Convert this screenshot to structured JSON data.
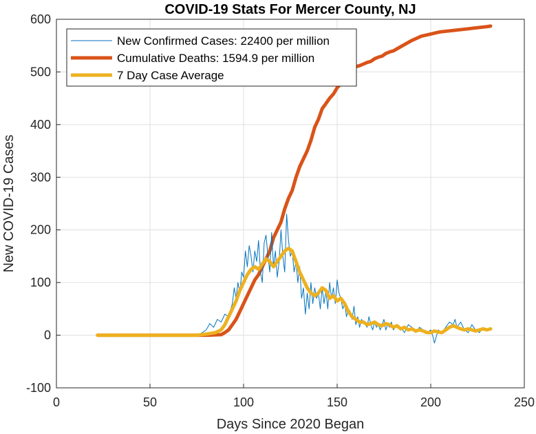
{
  "chart_data": {
    "type": "line",
    "title": "COVID-19 Stats For Mercer County, NJ",
    "xlabel": "Days Since 2020 Began",
    "ylabel": "New COVID-19 Cases",
    "xlim": [
      0,
      250
    ],
    "ylim": [
      -100,
      600
    ],
    "xticks": [
      "0",
      "50",
      "100",
      "150",
      "200",
      "250"
    ],
    "yticks": [
      "-100",
      "0",
      "100",
      "200",
      "300",
      "400",
      "500",
      "600"
    ],
    "grid": true,
    "legend_position": "top-left",
    "series": [
      {
        "name": "New Confirmed Cases: 22400 per million",
        "color": "#0072BD",
        "style": "thin",
        "x": [
          22,
          30,
          40,
          50,
          60,
          70,
          75,
          78,
          80,
          82,
          84,
          86,
          88,
          90,
          92,
          94,
          95,
          96,
          97,
          98,
          99,
          100,
          101,
          102,
          103,
          104,
          105,
          106,
          107,
          108,
          109,
          110,
          111,
          112,
          113,
          114,
          115,
          116,
          117,
          118,
          119,
          120,
          121,
          122,
          123,
          124,
          125,
          126,
          127,
          128,
          129,
          130,
          131,
          132,
          133,
          134,
          135,
          136,
          137,
          138,
          139,
          140,
          141,
          142,
          143,
          144,
          145,
          146,
          147,
          148,
          149,
          150,
          151,
          152,
          153,
          154,
          155,
          156,
          157,
          158,
          159,
          160,
          161,
          162,
          163,
          164,
          165,
          166,
          167,
          168,
          169,
          170,
          171,
          172,
          173,
          174,
          175,
          176,
          177,
          178,
          179,
          180,
          182,
          184,
          186,
          188,
          190,
          192,
          194,
          196,
          198,
          200,
          201,
          202,
          204,
          206,
          208,
          210,
          212,
          213,
          214,
          216,
          218,
          220,
          222,
          224,
          226,
          228,
          230,
          232
        ],
        "y": [
          0,
          0,
          0,
          0,
          0,
          0,
          0,
          5,
          10,
          22,
          15,
          30,
          25,
          40,
          35,
          60,
          90,
          70,
          100,
          80,
          120,
          110,
          160,
          130,
          170,
          150,
          120,
          160,
          140,
          180,
          120,
          100,
          175,
          190,
          150,
          120,
          195,
          130,
          160,
          110,
          140,
          200,
          150,
          120,
          230,
          180,
          150,
          160,
          120,
          140,
          100,
          130,
          70,
          90,
          40,
          80,
          50,
          100,
          60,
          90,
          70,
          80,
          50,
          90,
          60,
          85,
          50,
          100,
          70,
          90,
          60,
          105,
          80,
          70,
          50,
          60,
          35,
          50,
          45,
          30,
          55,
          20,
          35,
          15,
          30,
          25,
          20,
          15,
          35,
          20,
          10,
          25,
          15,
          20,
          10,
          20,
          30,
          10,
          20,
          15,
          25,
          10,
          20,
          15,
          5,
          20,
          15,
          5,
          15,
          10,
          5,
          10,
          0,
          -15,
          10,
          5,
          15,
          25,
          20,
          30,
          15,
          25,
          10,
          5,
          20,
          10,
          5,
          15,
          10,
          12
        ]
      },
      {
        "name": "Cumulative Deaths: 1594.9 per million",
        "color": "#D95319",
        "style": "thick",
        "x": [
          22,
          50,
          80,
          88,
          90,
          92,
          94,
          96,
          98,
          100,
          102,
          104,
          106,
          108,
          110,
          112,
          114,
          116,
          118,
          120,
          122,
          124,
          126,
          128,
          130,
          132,
          134,
          136,
          138,
          140,
          142,
          144,
          146,
          148,
          150,
          152,
          154,
          156,
          158,
          160,
          162,
          164,
          166,
          168,
          170,
          172,
          174,
          176,
          178,
          180,
          185,
          190,
          195,
          200,
          205,
          210,
          215,
          220,
          225,
          230,
          232
        ],
        "y": [
          0,
          0,
          0,
          1,
          5,
          10,
          20,
          30,
          45,
          60,
          75,
          90,
          105,
          115,
          130,
          145,
          160,
          185,
          200,
          215,
          240,
          260,
          275,
          300,
          320,
          335,
          350,
          370,
          395,
          410,
          430,
          440,
          450,
          458,
          470,
          478,
          490,
          500,
          505,
          510,
          512,
          515,
          518,
          520,
          525,
          528,
          530,
          535,
          538,
          540,
          550,
          560,
          568,
          572,
          576,
          578,
          580,
          582,
          584,
          586,
          587
        ]
      },
      {
        "name": "7 Day Case Average",
        "color": "#EDB120",
        "style": "thick",
        "x": [
          22,
          40,
          60,
          75,
          80,
          85,
          88,
          90,
          92,
          94,
          96,
          98,
          100,
          102,
          104,
          106,
          108,
          110,
          112,
          114,
          116,
          118,
          120,
          122,
          124,
          126,
          128,
          130,
          132,
          134,
          136,
          138,
          140,
          142,
          144,
          146,
          148,
          150,
          152,
          154,
          156,
          158,
          160,
          162,
          164,
          166,
          168,
          170,
          172,
          174,
          176,
          178,
          180,
          182,
          184,
          186,
          188,
          190,
          192,
          194,
          196,
          198,
          200,
          202,
          204,
          206,
          208,
          210,
          212,
          214,
          216,
          218,
          220,
          222,
          224,
          226,
          228,
          230,
          232
        ],
        "y": [
          0,
          0,
          0,
          0,
          2,
          5,
          10,
          20,
          35,
          50,
          65,
          85,
          100,
          115,
          125,
          130,
          125,
          135,
          145,
          140,
          130,
          140,
          150,
          160,
          165,
          160,
          140,
          120,
          105,
          90,
          80,
          75,
          80,
          90,
          85,
          70,
          75,
          65,
          70,
          60,
          45,
          35,
          30,
          25,
          25,
          20,
          22,
          25,
          20,
          18,
          22,
          20,
          15,
          18,
          12,
          15,
          10,
          12,
          8,
          10,
          8,
          5,
          5,
          8,
          6,
          5,
          10,
          15,
          18,
          15,
          12,
          10,
          12,
          10,
          8,
          10,
          12,
          10,
          12
        ]
      }
    ]
  }
}
